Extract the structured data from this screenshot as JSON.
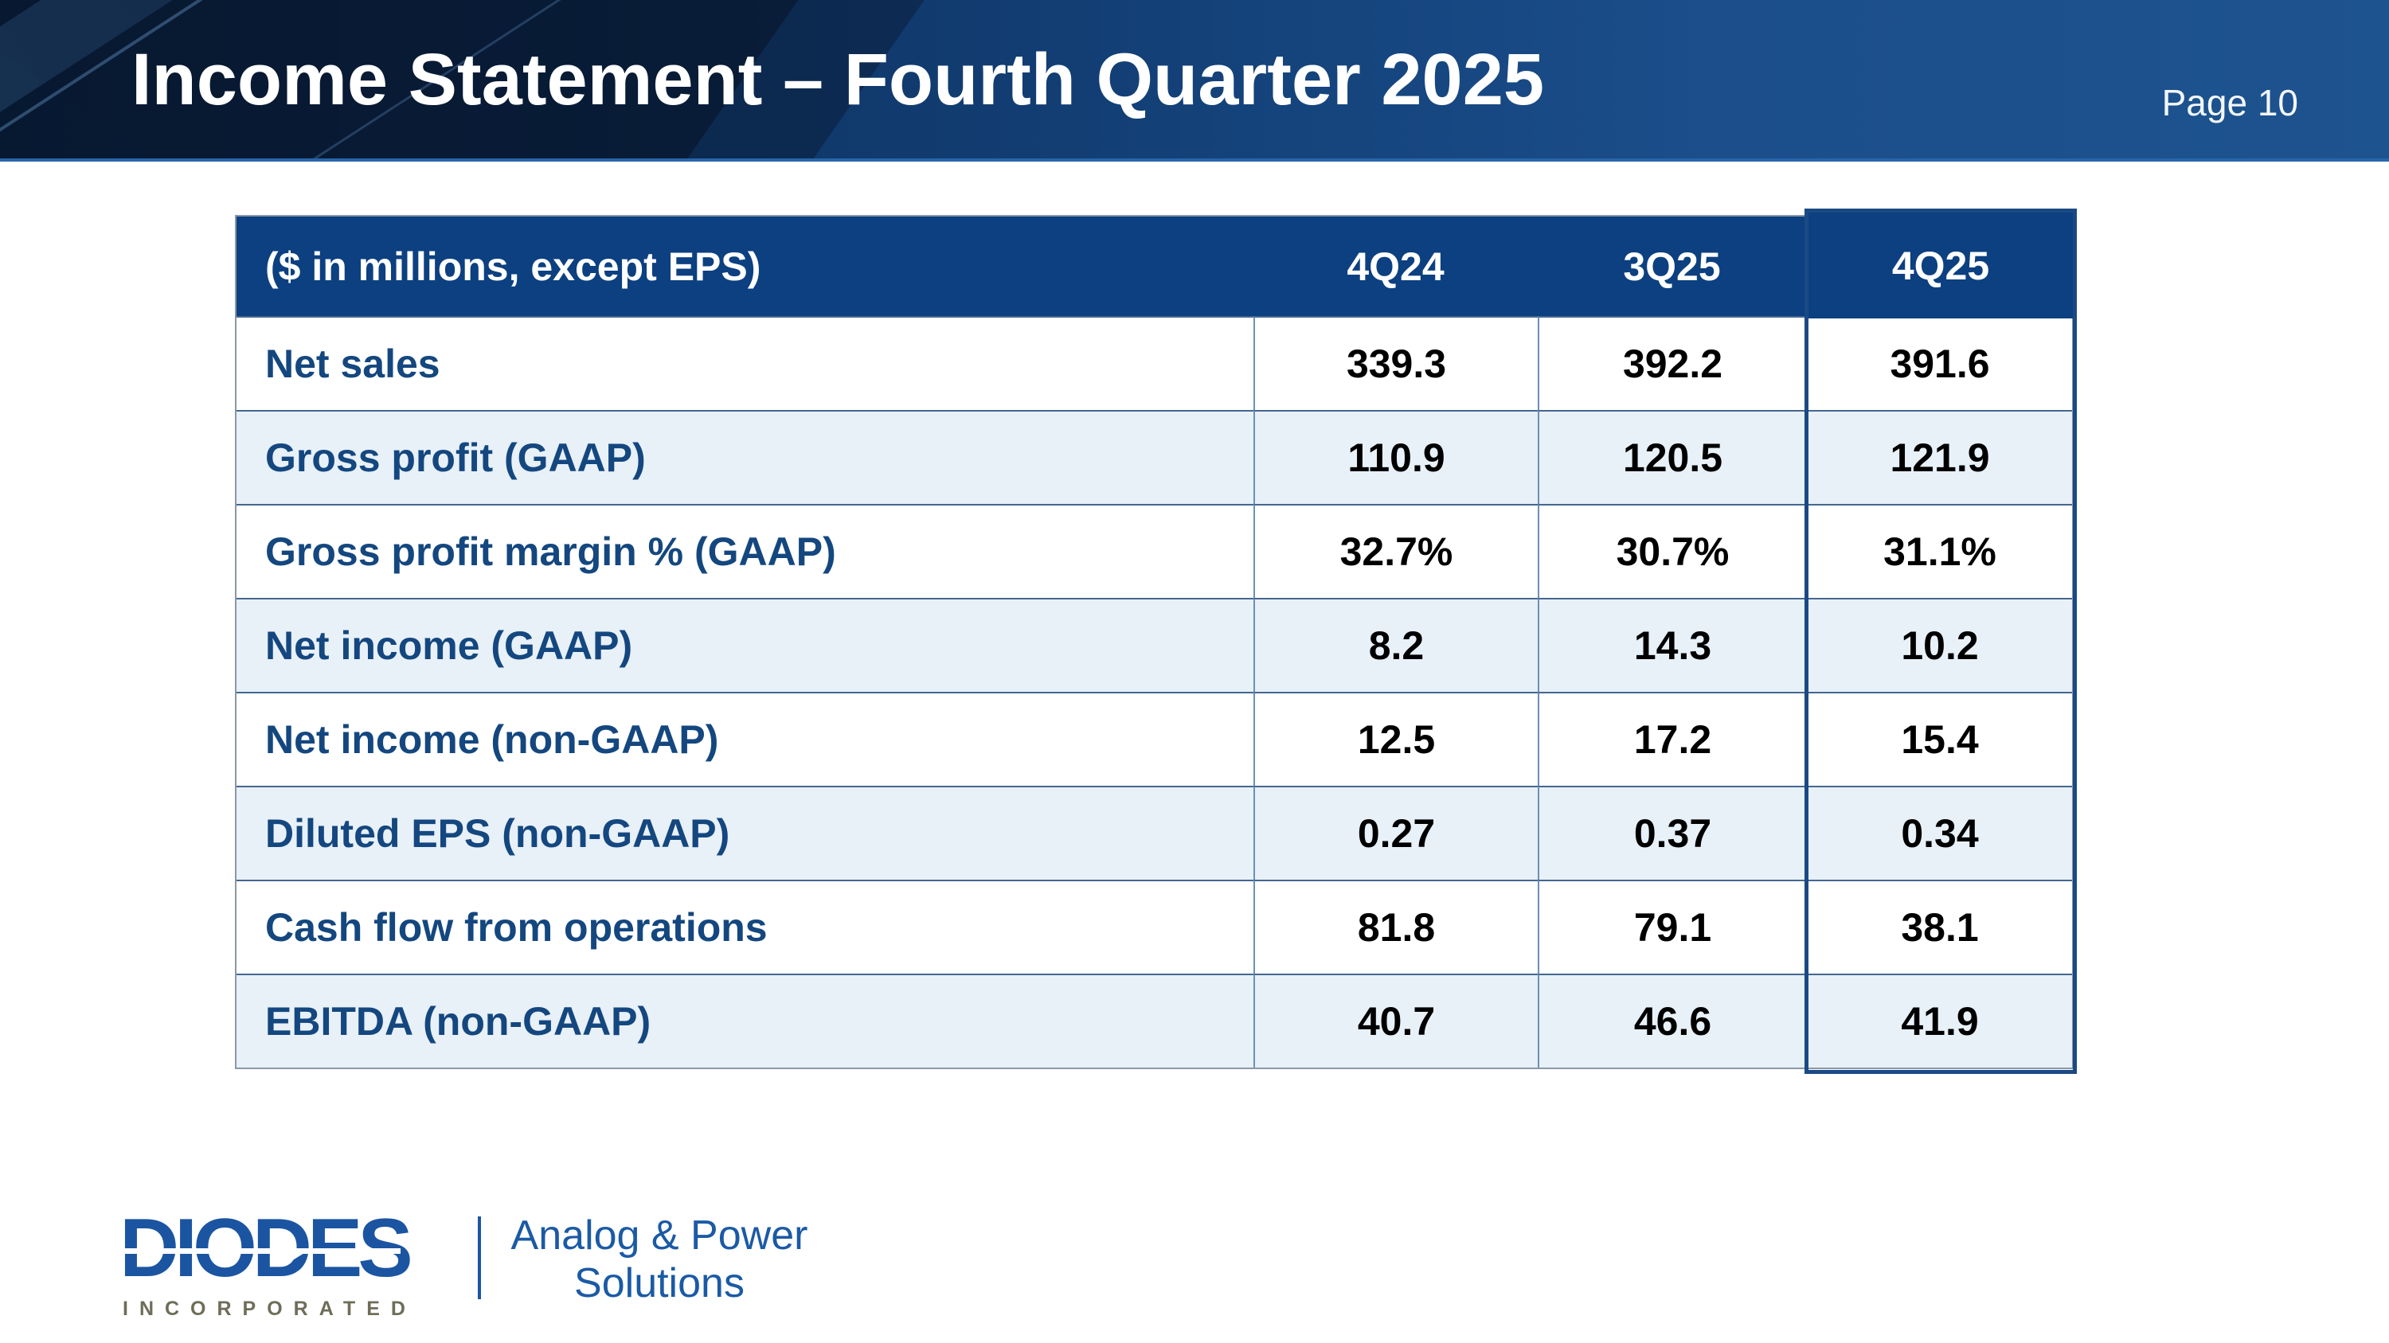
{
  "slide": {
    "title": "Income Statement – Fourth Quarter 2025",
    "page_label": "Page 10"
  },
  "table": {
    "unit_label": "($ in millions, except EPS)",
    "columns": [
      "4Q24",
      "3Q25",
      "4Q25"
    ],
    "highlighted_column": "4Q25",
    "rows": [
      {
        "label": "Net sales",
        "values": [
          "339.3",
          "392.2",
          "391.6"
        ]
      },
      {
        "label": "Gross profit (GAAP)",
        "values": [
          "110.9",
          "120.5",
          "121.9"
        ]
      },
      {
        "label": "Gross profit margin % (GAAP)",
        "values": [
          "32.7%",
          "30.7%",
          "31.1%"
        ]
      },
      {
        "label": "Net income (GAAP)",
        "values": [
          "8.2",
          "14.3",
          "10.2"
        ]
      },
      {
        "label": "Net income (non-GAAP)",
        "values": [
          "12.5",
          "17.2",
          "15.4"
        ]
      },
      {
        "label": "Diluted EPS (non-GAAP)",
        "values": [
          "0.27",
          "0.37",
          "0.34"
        ]
      },
      {
        "label": "Cash flow from operations",
        "values": [
          "81.8",
          "79.1",
          "38.1"
        ]
      },
      {
        "label": "EBITDA (non-GAAP)",
        "values": [
          "40.7",
          "46.6",
          "41.9"
        ]
      }
    ]
  },
  "footer": {
    "logo_text": "DIODES",
    "logo_subtext": "INCORPORATED",
    "tagline_line1": "Analog & Power",
    "tagline_line2": "Solutions"
  },
  "colors": {
    "table_header_navy": "#0c4080",
    "banner_blue": "#1d538f",
    "row_label_blue": "#14477f",
    "row_alt_background": "#e8f0f8",
    "highlight_border": "#1a4a84",
    "logo_blue": "#1b55a2",
    "incorporated_gray": "#6e6d58"
  }
}
